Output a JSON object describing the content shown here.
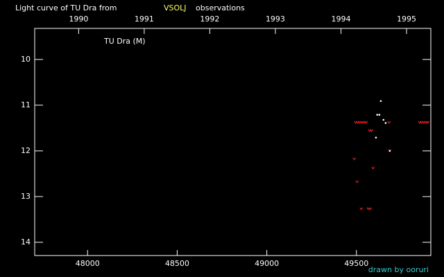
{
  "chart_data": {
    "type": "scatter",
    "title": "Light curve of TU Dra from",
    "source": "VSOLJ",
    "title_suffix": "observations",
    "source_color": "#ffff66",
    "label": "TU Dra (M)",
    "credit": "drawn by ooruri",
    "credit_color": "#33cccc",
    "xlim": [
      47705,
      49915
    ],
    "xticks": [
      48000,
      48500,
      49000,
      49500
    ],
    "x2lim": [
      1989.33,
      1995.37
    ],
    "x2ticks": [
      1990,
      1991,
      1992,
      1993,
      1994,
      1995
    ],
    "ylim": [
      14.29,
      9.32
    ],
    "yticks": [
      10,
      11,
      12,
      13,
      14
    ],
    "series": [
      {
        "color": "#ff2020",
        "marker": "v",
        "x": [
          49496,
          49508,
          49519,
          49531,
          49543,
          49554,
          49682,
          49853,
          49864,
          49876,
          49888,
          49899,
          49574,
          49585,
          49686,
          49488,
          49593,
          49504,
          49527,
          49566,
          49578
        ],
        "values": [
          11.38,
          11.38,
          11.38,
          11.38,
          11.38,
          11.38,
          11.38,
          11.38,
          11.38,
          11.38,
          11.38,
          11.38,
          11.56,
          11.56,
          12.0,
          12.18,
          12.38,
          12.68,
          13.27,
          13.27,
          13.27
        ]
      },
      {
        "color": "#ffffff",
        "marker": "dot",
        "x": [
          49636,
          49616,
          49628,
          49651,
          49663,
          49609,
          49686
        ],
        "values": [
          10.91,
          11.21,
          11.21,
          11.32,
          11.39,
          11.71,
          12.0
        ]
      }
    ]
  }
}
